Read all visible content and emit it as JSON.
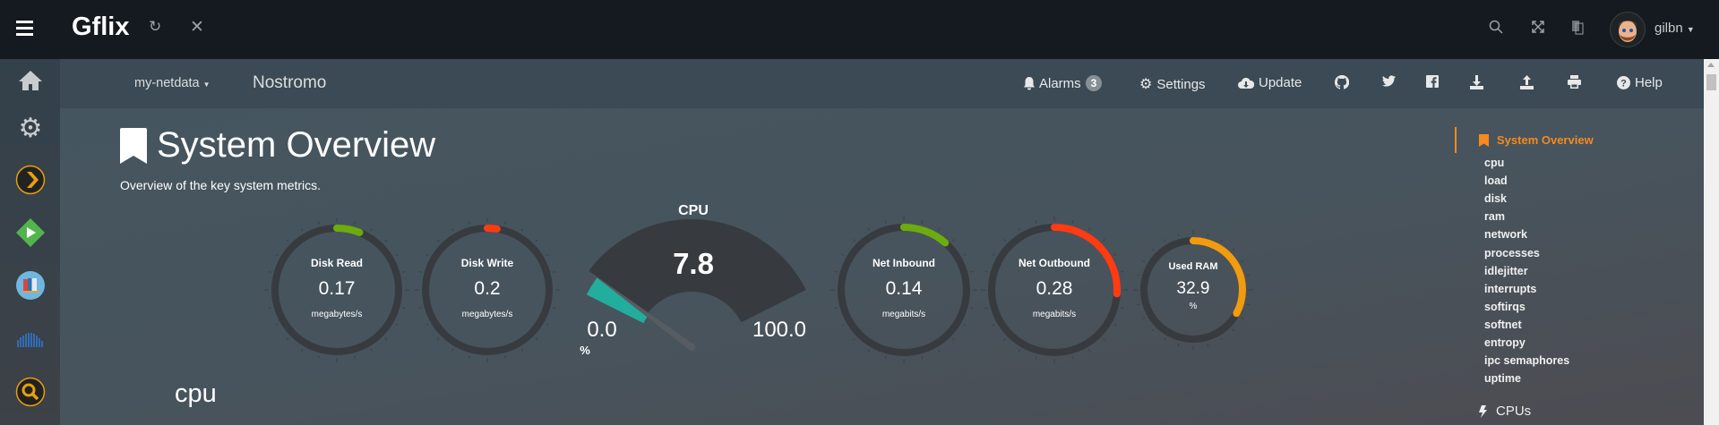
{
  "topbar": {
    "app_title": "Gflix",
    "user_name": "gilbn",
    "icons": [
      "menu-icon",
      "refresh-icon",
      "close-icon",
      "search-icon",
      "fullscreen-icon",
      "translate-icon",
      "avatar"
    ]
  },
  "sidebar": {
    "items": [
      {
        "name": "home",
        "icon": "home-icon"
      },
      {
        "name": "settings",
        "icon": "gear-icon"
      },
      {
        "name": "plex",
        "icon": "plex-icon"
      },
      {
        "name": "emby",
        "icon": "emby-icon"
      },
      {
        "name": "books",
        "icon": "books-icon"
      },
      {
        "name": "soundcloud",
        "icon": "soundcloud-icon"
      },
      {
        "name": "search",
        "icon": "search-icon"
      }
    ]
  },
  "header": {
    "server_menu": "my-netdata",
    "hostname": "Nostromo",
    "alarms_label": "Alarms",
    "alarms_count": "3",
    "settings_label": "Settings",
    "update_label": "Update",
    "help_label": "Help"
  },
  "main": {
    "title": "System Overview",
    "subtitle": "Overview of the key system metrics.",
    "section_heading": "cpu"
  },
  "cpu_gauge": {
    "title": "CPU",
    "value": "7.8",
    "min": "0.0",
    "max": "100.0",
    "unit": "%",
    "percent": 7.8,
    "color": "#22ad9c",
    "bg_color": "#373b40"
  },
  "ring_gauges": [
    {
      "title": "Disk Read",
      "value": "0.17",
      "unit": "megabytes/s",
      "fraction": 0.06,
      "color": "#6cac0e"
    },
    {
      "title": "Disk Write",
      "value": "0.2",
      "unit": "megabytes/s",
      "fraction": 0.025,
      "color": "#ff3b12"
    },
    {
      "title": "Net Inbound",
      "value": "0.14",
      "unit": "megabits/s",
      "fraction": 0.115,
      "color": "#6cac0e"
    },
    {
      "title": "Net Outbound",
      "value": "0.28",
      "unit": "megabits/s",
      "fraction": 0.26,
      "color": "#ff3b12"
    },
    {
      "title": "Used RAM",
      "value": "32.9",
      "unit": "%",
      "fraction": 0.329,
      "color": "#f29b0f"
    }
  ],
  "right_nav": {
    "active": "System Overview",
    "items": [
      "cpu",
      "load",
      "disk",
      "ram",
      "network",
      "processes",
      "idlejitter",
      "interrupts",
      "softirqs",
      "softnet",
      "entropy",
      "ipc semaphores",
      "uptime"
    ],
    "next_section": "CPUs",
    "accent": "#f58a1f"
  }
}
